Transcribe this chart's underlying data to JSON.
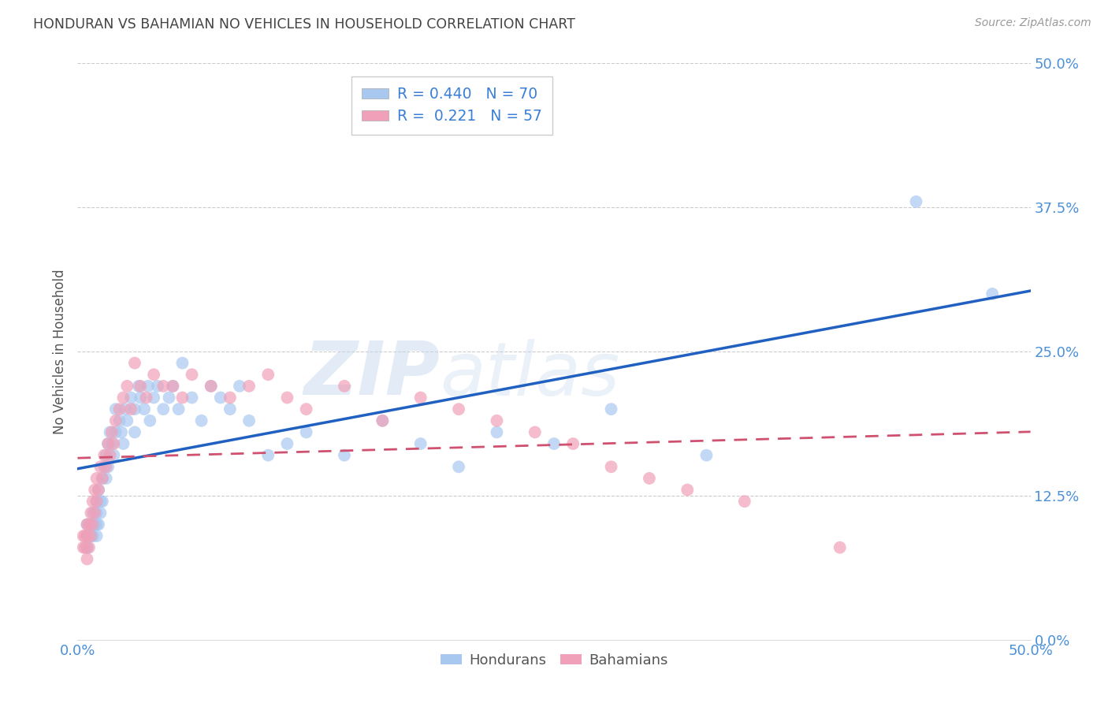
{
  "title": "HONDURAN VS BAHAMIAN NO VEHICLES IN HOUSEHOLD CORRELATION CHART",
  "source": "Source: ZipAtlas.com",
  "ylabel": "No Vehicles in Household",
  "watermark_zip": "ZIP",
  "watermark_atlas": "atlas",
  "legend_hondurans_R": 0.44,
  "legend_hondurans_N": 70,
  "legend_bahamians_R": 0.221,
  "legend_bahamians_N": 57,
  "ytick_labels": [
    "0.0%",
    "12.5%",
    "25.0%",
    "37.5%",
    "50.0%"
  ],
  "ytick_values": [
    0.0,
    0.125,
    0.25,
    0.375,
    0.5
  ],
  "xlim": [
    0.0,
    0.5
  ],
  "ylim": [
    0.0,
    0.5
  ],
  "hondurans_x": [
    0.005,
    0.005,
    0.005,
    0.005,
    0.005,
    0.007,
    0.007,
    0.008,
    0.008,
    0.009,
    0.01,
    0.01,
    0.01,
    0.01,
    0.011,
    0.011,
    0.012,
    0.012,
    0.013,
    0.013,
    0.014,
    0.015,
    0.015,
    0.016,
    0.016,
    0.017,
    0.018,
    0.019,
    0.02,
    0.02,
    0.022,
    0.023,
    0.024,
    0.025,
    0.026,
    0.028,
    0.03,
    0.03,
    0.032,
    0.033,
    0.035,
    0.037,
    0.038,
    0.04,
    0.042,
    0.045,
    0.048,
    0.05,
    0.053,
    0.055,
    0.06,
    0.065,
    0.07,
    0.075,
    0.08,
    0.085,
    0.09,
    0.1,
    0.11,
    0.12,
    0.14,
    0.16,
    0.18,
    0.2,
    0.22,
    0.25,
    0.28,
    0.33,
    0.44,
    0.48
  ],
  "hondurans_y": [
    0.1,
    0.09,
    0.09,
    0.08,
    0.08,
    0.1,
    0.09,
    0.11,
    0.09,
    0.1,
    0.12,
    0.11,
    0.1,
    0.09,
    0.13,
    0.1,
    0.12,
    0.11,
    0.14,
    0.12,
    0.15,
    0.16,
    0.14,
    0.17,
    0.15,
    0.18,
    0.17,
    0.16,
    0.2,
    0.18,
    0.19,
    0.18,
    0.17,
    0.2,
    0.19,
    0.21,
    0.2,
    0.18,
    0.22,
    0.21,
    0.2,
    0.22,
    0.19,
    0.21,
    0.22,
    0.2,
    0.21,
    0.22,
    0.2,
    0.24,
    0.21,
    0.19,
    0.22,
    0.21,
    0.2,
    0.22,
    0.19,
    0.16,
    0.17,
    0.18,
    0.16,
    0.19,
    0.17,
    0.15,
    0.18,
    0.17,
    0.2,
    0.16,
    0.38,
    0.3
  ],
  "bahamians_x": [
    0.003,
    0.003,
    0.004,
    0.004,
    0.005,
    0.005,
    0.005,
    0.006,
    0.006,
    0.007,
    0.007,
    0.008,
    0.008,
    0.009,
    0.009,
    0.01,
    0.01,
    0.011,
    0.012,
    0.013,
    0.014,
    0.015,
    0.016,
    0.017,
    0.018,
    0.019,
    0.02,
    0.022,
    0.024,
    0.026,
    0.028,
    0.03,
    0.033,
    0.036,
    0.04,
    0.045,
    0.05,
    0.055,
    0.06,
    0.07,
    0.08,
    0.09,
    0.1,
    0.11,
    0.12,
    0.14,
    0.16,
    0.18,
    0.2,
    0.22,
    0.24,
    0.26,
    0.28,
    0.3,
    0.32,
    0.35,
    0.4
  ],
  "bahamians_y": [
    0.09,
    0.08,
    0.09,
    0.08,
    0.1,
    0.09,
    0.07,
    0.1,
    0.08,
    0.11,
    0.09,
    0.12,
    0.1,
    0.13,
    0.11,
    0.14,
    0.12,
    0.13,
    0.15,
    0.14,
    0.16,
    0.15,
    0.17,
    0.16,
    0.18,
    0.17,
    0.19,
    0.2,
    0.21,
    0.22,
    0.2,
    0.24,
    0.22,
    0.21,
    0.23,
    0.22,
    0.22,
    0.21,
    0.23,
    0.22,
    0.21,
    0.22,
    0.23,
    0.21,
    0.2,
    0.22,
    0.19,
    0.21,
    0.2,
    0.19,
    0.18,
    0.17,
    0.15,
    0.14,
    0.13,
    0.12,
    0.08
  ],
  "background_color": "#ffffff",
  "grid_color": "#cccccc",
  "title_color": "#444444",
  "axis_label_color": "#555555",
  "tick_color": "#4a90d9",
  "blue_scatter": "#a8c8f0",
  "pink_scatter": "#f0a0b8",
  "blue_line": "#2060c0",
  "pink_line": "#d05070"
}
